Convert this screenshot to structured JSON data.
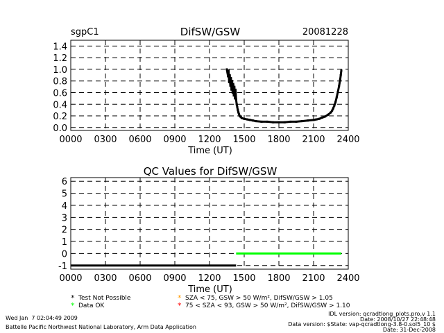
{
  "header": {
    "site": "sgpC1",
    "title": "DifSW/GSW",
    "date": "20081228"
  },
  "chart_data": [
    {
      "type": "scatter",
      "title": "DifSW/GSW",
      "xlabel": "Time (UT)",
      "ylabel": "",
      "xlim": [
        0,
        2400
      ],
      "ylim": [
        -0.05,
        1.5
      ],
      "x_ticks": [
        "0000",
        "0300",
        "0600",
        "0900",
        "1200",
        "1500",
        "1800",
        "2100",
        "2400"
      ],
      "y_ticks": [
        "0.0",
        "0.2",
        "0.4",
        "0.6",
        "0.8",
        "1.0",
        "1.2",
        "1.4"
      ],
      "grid": true,
      "series": [
        {
          "color": "#000000",
          "x": [
            1350,
            1355,
            1360,
            1365,
            1370,
            1375,
            1380,
            1385,
            1390,
            1395,
            1400,
            1405,
            1410,
            1415,
            1420,
            1425,
            1430,
            1435,
            1440,
            1445,
            1450,
            1455,
            1460,
            1470,
            1480,
            1500,
            1525,
            1550,
            1575,
            1600,
            1650,
            1700,
            1750,
            1800,
            1850,
            1900,
            1950,
            2000,
            2050,
            2100,
            2125,
            2150,
            2175,
            2200,
            2225,
            2250,
            2260,
            2270,
            2280,
            2290,
            2300,
            2310,
            2320,
            2330,
            2335,
            2340
          ],
          "y": [
            1.0,
            0.95,
            0.88,
            0.98,
            0.78,
            0.9,
            0.72,
            0.85,
            0.65,
            0.8,
            0.6,
            0.75,
            0.55,
            0.7,
            0.5,
            0.65,
            0.48,
            0.4,
            0.35,
            0.3,
            0.26,
            0.23,
            0.2,
            0.18,
            0.16,
            0.15,
            0.14,
            0.13,
            0.12,
            0.11,
            0.1,
            0.1,
            0.09,
            0.09,
            0.09,
            0.1,
            0.1,
            0.11,
            0.12,
            0.13,
            0.14,
            0.15,
            0.17,
            0.19,
            0.22,
            0.26,
            0.29,
            0.33,
            0.38,
            0.44,
            0.52,
            0.61,
            0.71,
            0.82,
            0.9,
            0.98
          ]
        }
      ]
    },
    {
      "type": "line",
      "title": "QC Values for DifSW/GSW",
      "xlabel": "Time (UT)",
      "ylabel": "",
      "xlim": [
        0,
        2400
      ],
      "ylim": [
        -1.3,
        6.3
      ],
      "x_ticks": [
        "0000",
        "0300",
        "0600",
        "0900",
        "1200",
        "1500",
        "1800",
        "2100",
        "2400"
      ],
      "y_ticks": [
        "-1",
        "0",
        "1",
        "2",
        "3",
        "4",
        "5",
        "6"
      ],
      "grid": true,
      "series": [
        {
          "color": "#000000",
          "x": [
            0,
            1430
          ],
          "y": [
            -1,
            -1
          ]
        },
        {
          "color": "#00ff00",
          "x": [
            1430,
            2340
          ],
          "y": [
            0,
            0
          ]
        }
      ]
    }
  ],
  "legend": [
    {
      "symbol": "*",
      "color": "#000000",
      "label": "Test Not Possible"
    },
    {
      "symbol": "*",
      "color": "#00ff00",
      "label": "Data OK"
    },
    {
      "symbol": "*",
      "color": "#ff9900",
      "label": "SZA < 75, GSW > 50 W/m², DifSW/GSW > 1.05"
    },
    {
      "symbol": "*",
      "color": "#ff0000",
      "label": "75 < SZA < 93, GSW > 50 W/m², DifSW/GSW > 1.10"
    }
  ],
  "footer": {
    "timestamp": "Wed Jan  7 02:04:49 2009",
    "lab": "Battelle Pacific Northwest National Laboratory, Arm Data Application",
    "idl_version": "IDL version: qcradtlong_plots.pro,v 1.1",
    "date_line": "Date: 2008/10/27 22:48:48",
    "data_version": "Data version: $State: vap-qcradtlong-3.8-0.sol5_10 $",
    "data_date": "Date: 31-Dec-2008"
  }
}
